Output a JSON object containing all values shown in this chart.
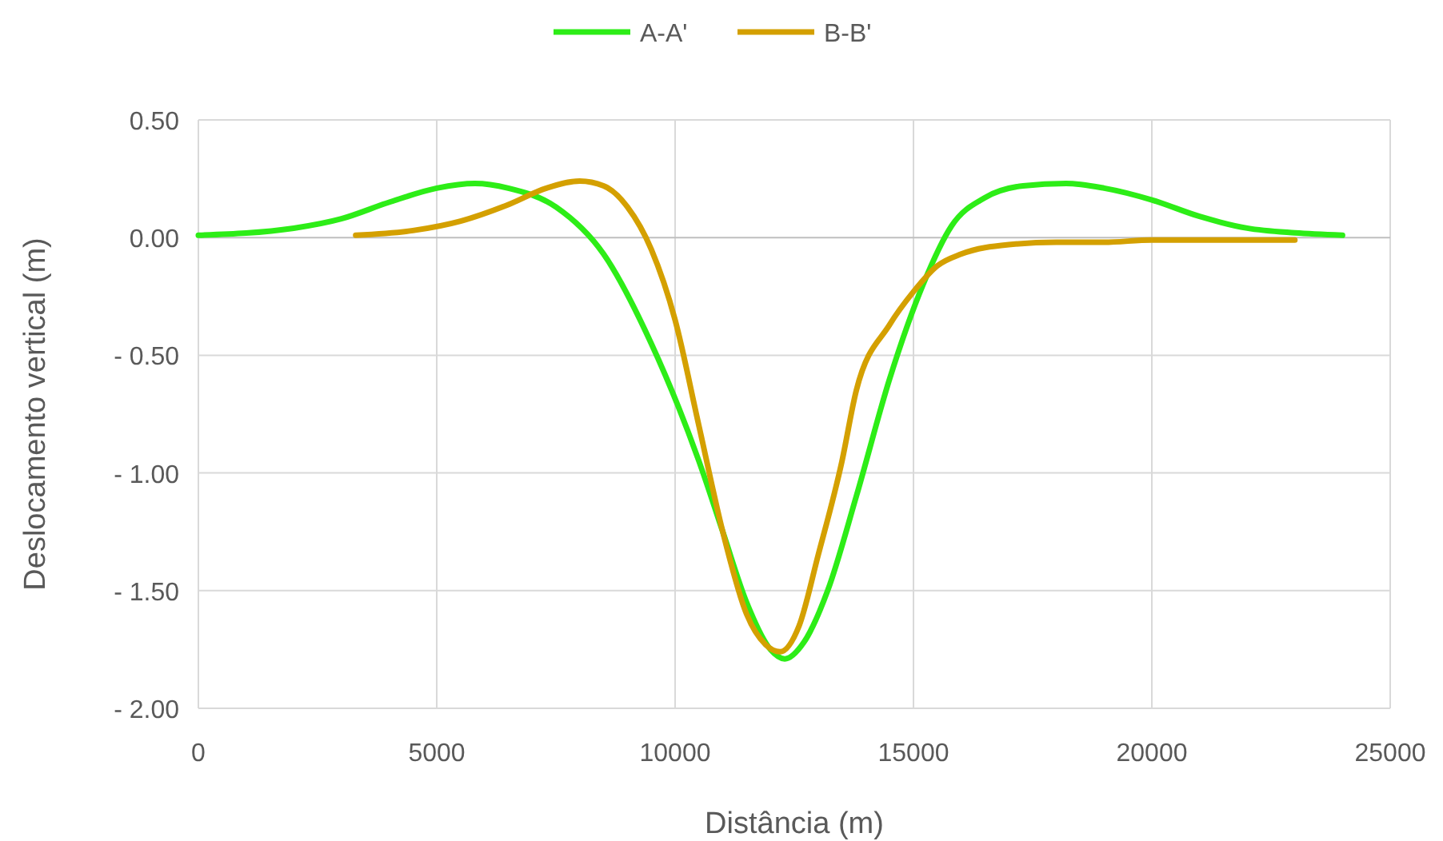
{
  "chart_data": {
    "type": "line",
    "xlabel": "Distância (m)",
    "ylabel": "Deslocamento vertical (m)",
    "xlim": [
      0,
      25000
    ],
    "xticks": [
      0,
      5000,
      10000,
      15000,
      20000,
      25000
    ],
    "ylim": [
      -2,
      0.5
    ],
    "yticks": [
      {
        "value": 0.5,
        "label": "0.50"
      },
      {
        "value": 0,
        "label": "0.00"
      },
      {
        "value": -0.5,
        "label": "- 0.50"
      },
      {
        "value": -1,
        "label": "- 1.00"
      },
      {
        "value": -1.5,
        "label": "- 1.50"
      },
      {
        "value": -2,
        "label": "- 2.00"
      }
    ],
    "grid": true,
    "legend": "top",
    "line_style": "solid",
    "series": [
      {
        "name": "A-A'",
        "color": "#2ded17",
        "x": [
          0,
          2000,
          3000,
          4000,
          5000,
          5800,
          6500,
          7500,
          8500,
          9500,
          10500,
          11000,
          11500,
          12000,
          12300,
          12700,
          13200,
          13800,
          14500,
          15200,
          15800,
          16500,
          17300,
          18200,
          19000,
          20000,
          21000,
          22000,
          23000,
          24000
        ],
        "values": [
          0.01,
          0.04,
          0.08,
          0.15,
          0.21,
          0.23,
          0.21,
          0.13,
          -0.07,
          -0.45,
          -0.95,
          -1.25,
          -1.55,
          -1.75,
          -1.79,
          -1.72,
          -1.5,
          -1.1,
          -0.6,
          -0.2,
          0.05,
          0.17,
          0.22,
          0.23,
          0.21,
          0.16,
          0.09,
          0.04,
          0.02,
          0.01
        ]
      },
      {
        "name": "B-B'",
        "color": "#d4a000",
        "x": [
          3300,
          4500,
          5500,
          6500,
          7300,
          8000,
          8500,
          9000,
          9500,
          10000,
          10500,
          11000,
          11500,
          11900,
          12200,
          12600,
          13000,
          13500,
          13800,
          14500,
          15000,
          15500,
          16000,
          17000,
          18000,
          19000,
          20000,
          21000,
          23000
        ],
        "values": [
          0.01,
          0.03,
          0.07,
          0.14,
          0.21,
          0.24,
          0.22,
          0.13,
          -0.05,
          -0.35,
          -0.8,
          -1.25,
          -1.6,
          -1.73,
          -1.76,
          -1.65,
          -1.35,
          -0.95,
          -0.65,
          -0.37,
          -0.23,
          -0.12,
          -0.07,
          -0.03,
          -0.02,
          -0.02,
          -0.01,
          -0.01,
          -0.01
        ]
      }
    ]
  }
}
